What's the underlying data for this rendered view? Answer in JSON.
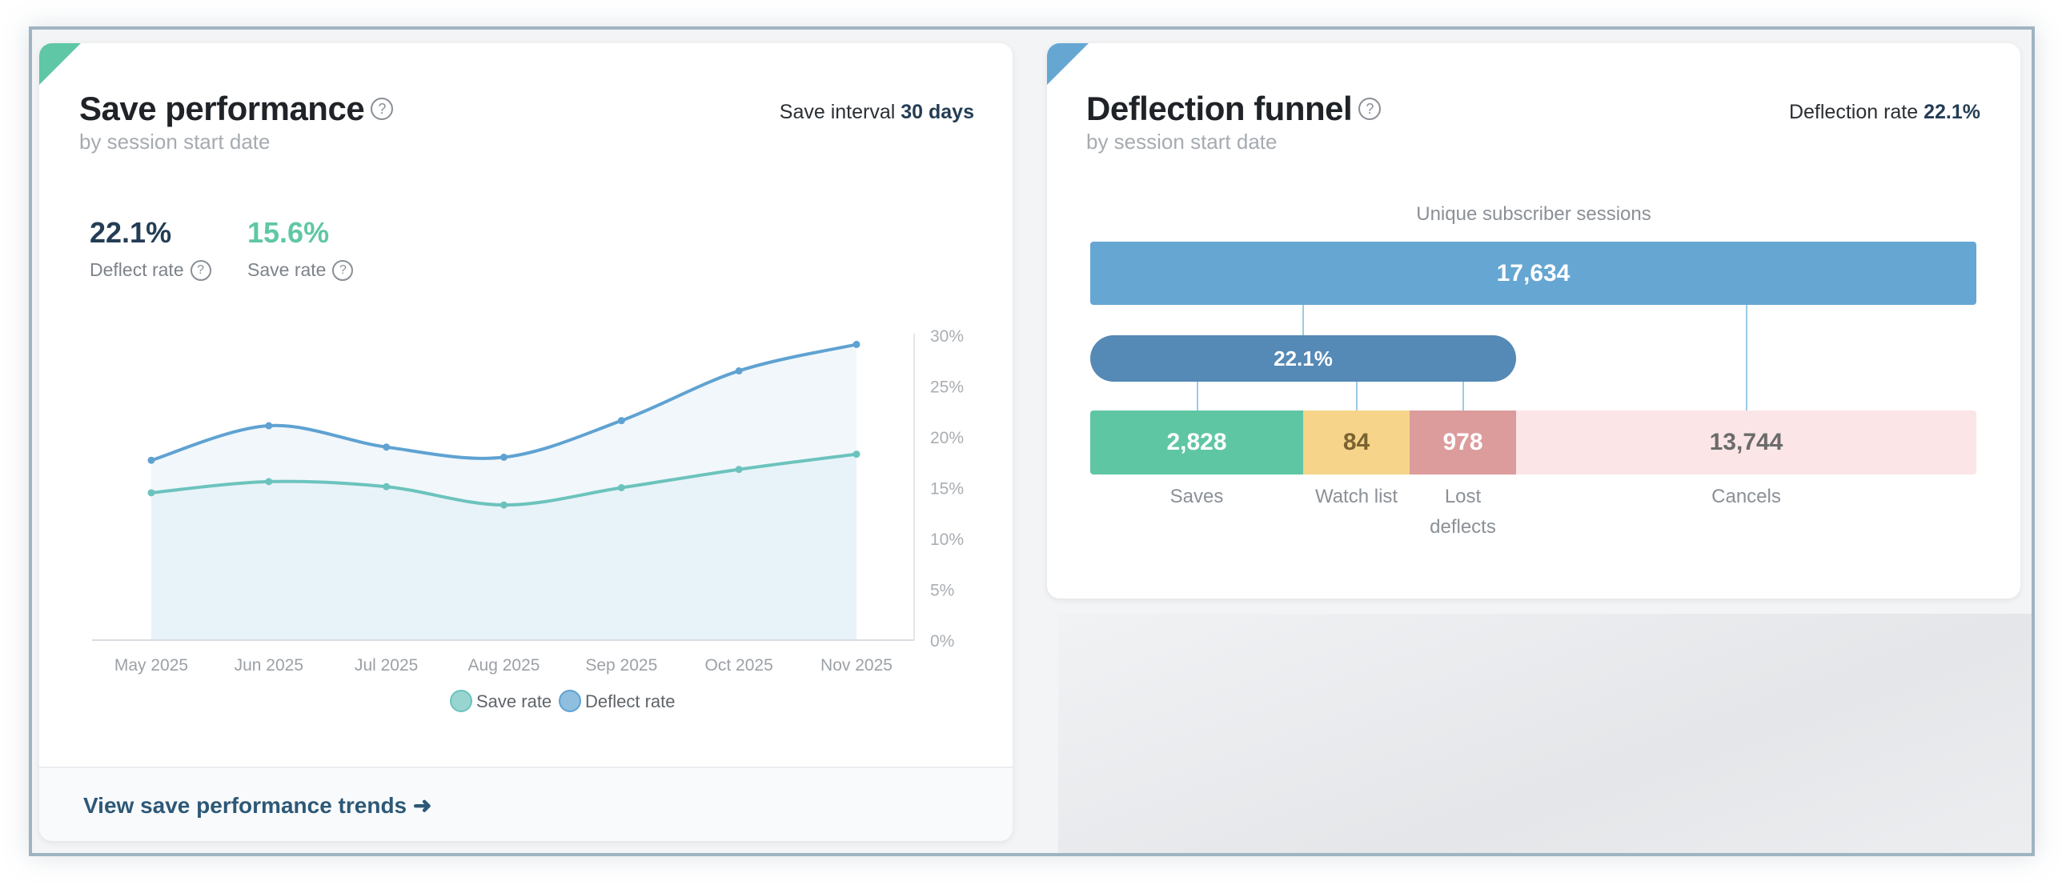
{
  "save_performance": {
    "title": "Save performance",
    "subtitle": "by session start date",
    "interval_label": "Save interval",
    "interval_value": "30 days",
    "metrics": [
      {
        "value": "22.1%",
        "label": "Deflect rate",
        "color": "#243d55"
      },
      {
        "value": "15.6%",
        "label": "Save rate",
        "color": "#5fc7a5"
      }
    ],
    "footer_link": "View save performance trends ➜",
    "accent": "#5fc7a5"
  },
  "chart_data": {
    "type": "area",
    "x": [
      "May 2025",
      "Jun 2025",
      "Jul 2025",
      "Aug 2025",
      "Sep 2025",
      "Oct 2025",
      "Nov 2025"
    ],
    "yticks": [
      "0%",
      "5%",
      "10%",
      "15%",
      "20%",
      "25%",
      "30%"
    ],
    "ylim": [
      0,
      30
    ],
    "yaxis_position": "right",
    "legend_position": "bottom",
    "series": [
      {
        "name": "Save rate",
        "values": [
          14.5,
          15.6,
          15.1,
          13.3,
          15.0,
          16.8,
          18.3
        ],
        "color": "#6cc3bd",
        "fill": "#e8f3f9"
      },
      {
        "name": "Deflect rate",
        "values": [
          17.7,
          21.1,
          19.0,
          18.0,
          21.6,
          26.5,
          29.1
        ],
        "color": "#5fa2d2",
        "fill": "#f1f7fb"
      }
    ]
  },
  "deflection_funnel": {
    "title": "Deflection funnel",
    "subtitle": "by session start date",
    "rate_label": "Deflection rate",
    "rate_value": "22.1%",
    "sessions_label": "Unique subscriber sessions",
    "total": "17,634",
    "deflect_pct": "22.1%",
    "accent": "#66a6d3",
    "segments": [
      {
        "value": "2,828",
        "label": "Saves",
        "color": "#5fc6a4"
      },
      {
        "value": "84",
        "label": "Watch list",
        "color": "#f6d58b"
      },
      {
        "value": "978",
        "label": "Lost deflects",
        "color": "#dc9c9c"
      },
      {
        "value": "13,744",
        "label": "Cancels",
        "color": "#fbe5e6"
      }
    ]
  }
}
